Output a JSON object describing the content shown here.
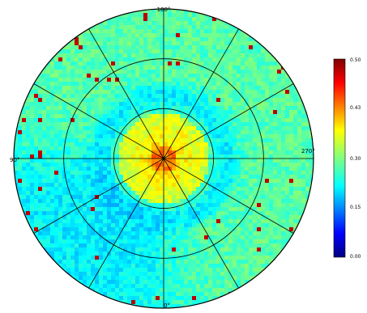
{
  "chart_data": {
    "type": "heatmap",
    "projection": "polar",
    "azimuth_labels": [
      "180°",
      "90°",
      "270°",
      "0°"
    ],
    "colorbar": {
      "ticks": [
        "0.50",
        "0.43",
        "0.30",
        "0.15",
        "0.00"
      ],
      "range": [
        0.0,
        0.5
      ],
      "colormap": "jet"
    },
    "grid": {
      "rings": 3,
      "spokes_deg": 30,
      "on": true
    },
    "field": {
      "center_value": 0.38,
      "inner_disc_value": 0.33,
      "ring_minimum_value": 0.18,
      "ring_minimum_radius_fraction": 0.42,
      "outer_value": 0.23,
      "low_sector_azimuth_deg": 225,
      "low_sector_value": 0.16,
      "high_spot_value": 0.47
    }
  },
  "colors": {
    "grid": "#000000",
    "background": "#ffffff"
  }
}
